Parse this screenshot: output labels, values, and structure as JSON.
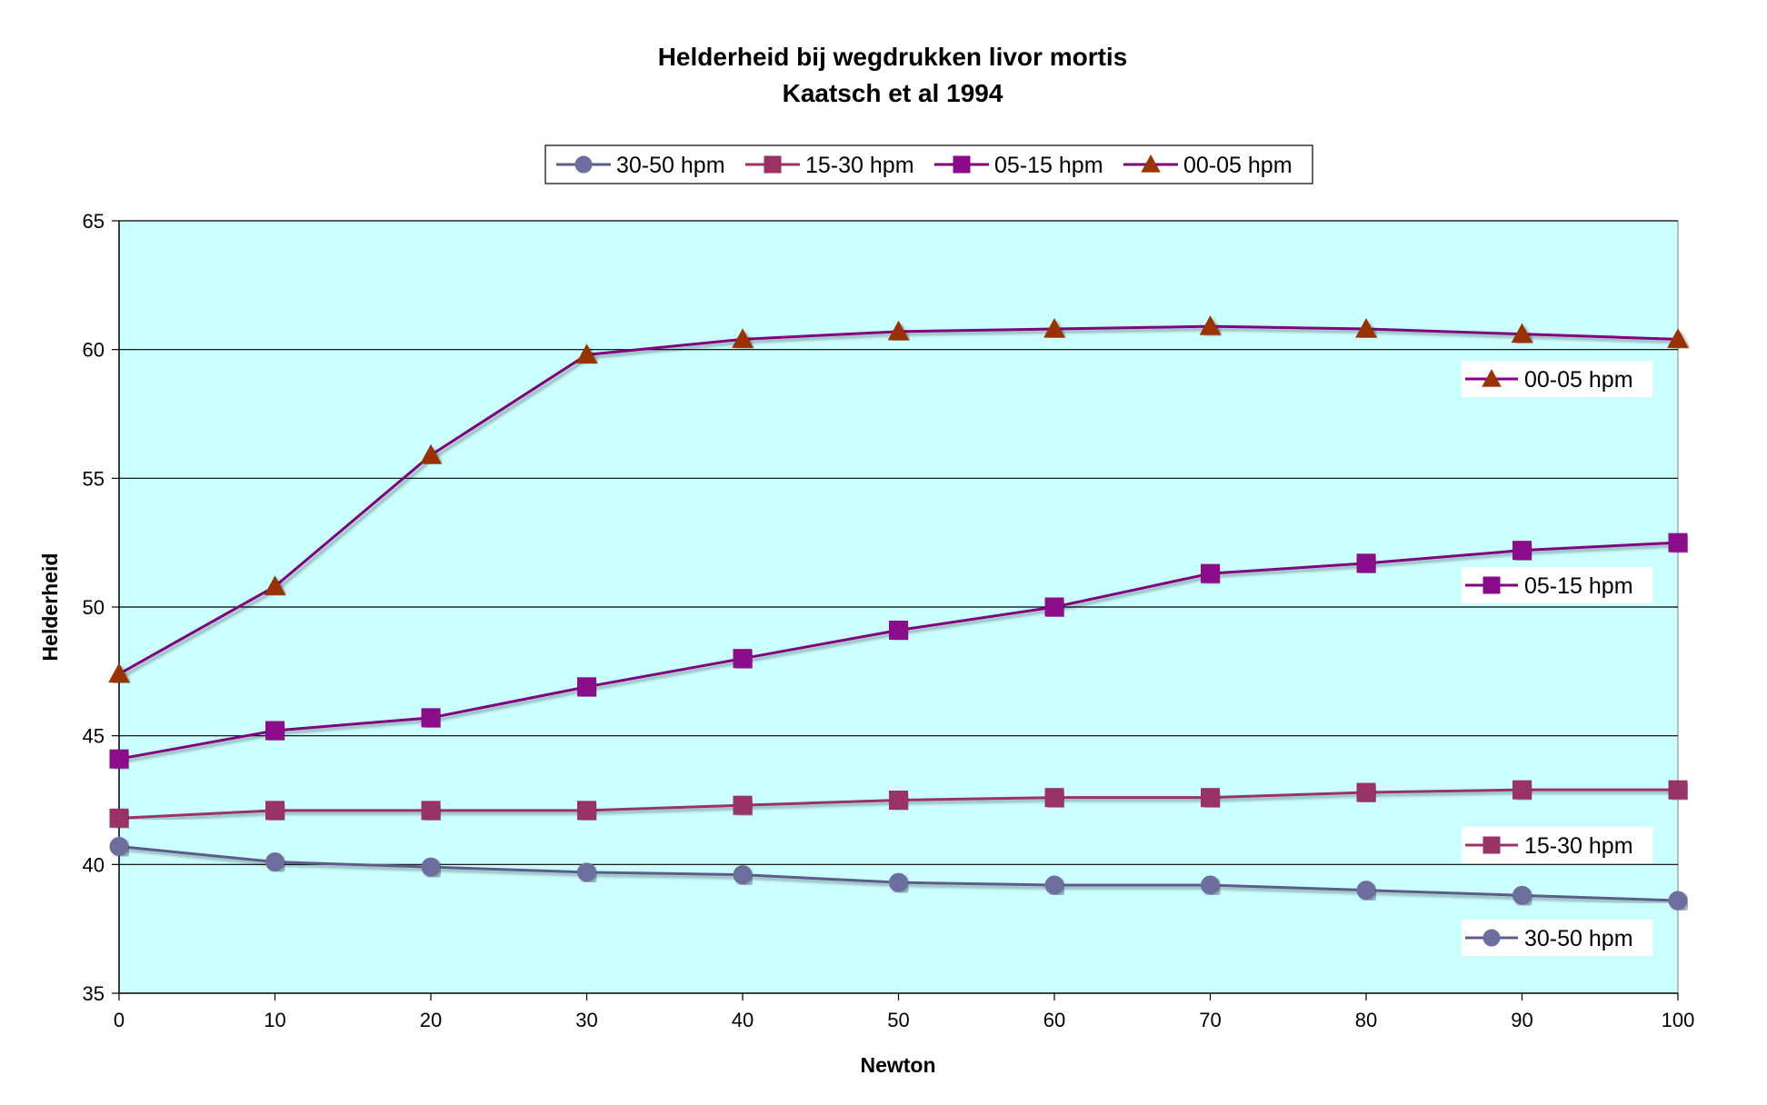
{
  "chart_data": {
    "type": "line",
    "title": "Helderheid bij wegdrukken livor mortis",
    "subtitle": "Kaatsch et al 1994",
    "xlabel": "Newton",
    "ylabel": "Helderheid",
    "x": [
      0,
      10,
      20,
      30,
      40,
      50,
      60,
      70,
      80,
      90,
      100
    ],
    "xlim": [
      0,
      100
    ],
    "ylim": [
      35,
      65
    ],
    "x_ticks": [
      "0",
      "10",
      "20",
      "30",
      "40",
      "50",
      "60",
      "70",
      "80",
      "90",
      "100"
    ],
    "y_ticks": [
      "35",
      "40",
      "45",
      "50",
      "55",
      "60",
      "65"
    ],
    "y_tick_values": [
      35,
      40,
      45,
      50,
      55,
      60,
      65
    ],
    "grid": "horizontal",
    "legend_position": "top",
    "series": [
      {
        "name": "30-50 hpm",
        "marker": "circle",
        "line_color": "#5C5C8A",
        "marker_color": "#6E6E9E",
        "values": [
          40.7,
          40.1,
          39.9,
          39.7,
          39.6,
          39.3,
          39.2,
          39.2,
          39.0,
          38.8,
          38.6
        ]
      },
      {
        "name": "15-30 hpm",
        "marker": "square",
        "line_color": "#993366",
        "marker_color": "#993366",
        "values": [
          41.8,
          42.1,
          42.1,
          42.1,
          42.3,
          42.5,
          42.6,
          42.6,
          42.8,
          42.9,
          42.9
        ]
      },
      {
        "name": "05-15 hpm",
        "marker": "square",
        "line_color": "#800080",
        "marker_color": "#8B0A8B",
        "values": [
          44.1,
          45.2,
          45.7,
          46.9,
          48.0,
          49.1,
          50.0,
          51.3,
          51.7,
          52.2,
          52.5
        ]
      },
      {
        "name": "00-05 hpm",
        "marker": "triangle",
        "line_color": "#800080",
        "marker_color": "#993300",
        "values": [
          47.4,
          50.8,
          55.9,
          59.8,
          60.4,
          60.7,
          60.8,
          60.9,
          60.8,
          60.6,
          60.4
        ]
      }
    ],
    "plot_background": "#CCFFFF",
    "series_labels": [
      "00-05 hpm",
      "05-15 hpm",
      "15-30 hpm",
      "30-50 hpm"
    ]
  }
}
